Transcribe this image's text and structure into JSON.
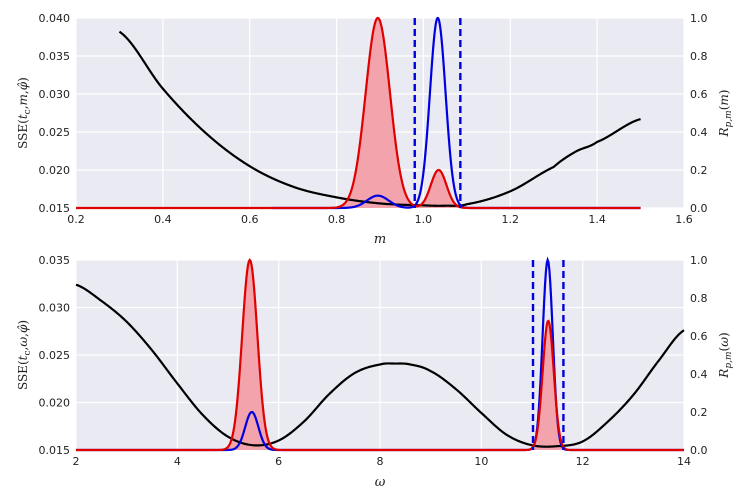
{
  "chart_data": [
    {
      "type": "line",
      "xlabel": "m",
      "ylabel": "SSE(t_c,m,φ̂)",
      "y2label": "R_p,m(m)",
      "xlim": [
        0.2,
        1.6
      ],
      "ylim": [
        0.015,
        0.04
      ],
      "y2lim": [
        0.0,
        1.0
      ],
      "xticks": [
        "0.2",
        "0.4",
        "0.6",
        "0.8",
        "1.0",
        "1.2",
        "1.4",
        "1.6"
      ],
      "yticks": [
        "0.015",
        "0.020",
        "0.025",
        "0.030",
        "0.035",
        "0.040"
      ],
      "y2ticks": [
        "0.0",
        "0.2",
        "0.4",
        "0.6",
        "0.8",
        "1.0"
      ],
      "grid": true,
      "colors": {
        "sse": "#000000",
        "red": "#e00000",
        "blue": "#0000e0",
        "fill": "#f2a3ab",
        "bg": "#eaeaf2"
      },
      "sse_curve": {
        "x": [
          0.3,
          0.4,
          0.5,
          0.6,
          0.7,
          0.8,
          0.9,
          1.0,
          1.05,
          1.1,
          1.2,
          1.3,
          1.35,
          1.4,
          1.5
        ],
        "y": [
          0.0382,
          0.0307,
          0.0248,
          0.0205,
          0.0178,
          0.0164,
          0.0156,
          0.01535,
          0.0153,
          0.0155,
          0.0172,
          0.0204,
          0.0224,
          0.0237,
          0.0267
        ]
      },
      "red_peaks": [
        {
          "center": 0.895,
          "width": 0.028,
          "height": 1.0
        },
        {
          "center": 1.035,
          "width": 0.018,
          "height": 0.2
        }
      ],
      "red_range": [
        0.2,
        1.5
      ],
      "blue_peaks": [
        {
          "center": 0.895,
          "width": 0.025,
          "height": 0.065
        },
        {
          "center": 1.033,
          "width": 0.018,
          "height": 1.0
        }
      ],
      "blue_range": [
        0.65,
        1.5
      ],
      "vlines": [
        0.98,
        1.085
      ]
    },
    {
      "type": "line",
      "xlabel": "ω",
      "ylabel": "SSE(t_c,ω,φ̂)",
      "y2label": "R_p,m(ω)",
      "xlim": [
        2,
        14
      ],
      "ylim": [
        0.015,
        0.035
      ],
      "y2lim": [
        0.0,
        1.0
      ],
      "xticks": [
        "2",
        "4",
        "6",
        "8",
        "10",
        "12",
        "14"
      ],
      "yticks": [
        "0.015",
        "0.020",
        "0.025",
        "0.030",
        "0.035"
      ],
      "y2ticks": [
        "0.0",
        "0.2",
        "0.4",
        "0.6",
        "0.8",
        "1.0"
      ],
      "grid": true,
      "colors": {
        "sse": "#000000",
        "red": "#e00000",
        "blue": "#0000e0",
        "fill": "#f2a3ab",
        "bg": "#eaeaf2"
      },
      "sse_curve": {
        "x": [
          2.0,
          2.5,
          3.0,
          3.5,
          4.0,
          4.5,
          5.0,
          5.5,
          6.0,
          6.5,
          7.0,
          7.5,
          8.0,
          8.3,
          8.6,
          9.0,
          9.5,
          10.0,
          10.5,
          11.0,
          11.5,
          12.0,
          12.5,
          13.0,
          13.5,
          14.0
        ],
        "y": [
          0.0324,
          0.0307,
          0.0285,
          0.0255,
          0.022,
          0.0187,
          0.0164,
          0.0155,
          0.016,
          0.018,
          0.0209,
          0.0231,
          0.024,
          0.0241,
          0.024,
          0.0233,
          0.0214,
          0.0189,
          0.0166,
          0.0155,
          0.0154,
          0.0159,
          0.018,
          0.0208,
          0.0244,
          0.0276
        ]
      },
      "red_peaks": [
        {
          "center": 5.43,
          "width": 0.15,
          "height": 1.0
        },
        {
          "center": 11.32,
          "width": 0.11,
          "height": 0.68
        }
      ],
      "red_range": [
        2,
        14
      ],
      "blue_peaks": [
        {
          "center": 5.47,
          "width": 0.13,
          "height": 0.2
        },
        {
          "center": 11.31,
          "width": 0.1,
          "height": 1.0
        }
      ],
      "blue_range": [
        2,
        14
      ],
      "vlines": [
        11.02,
        11.62
      ]
    }
  ]
}
